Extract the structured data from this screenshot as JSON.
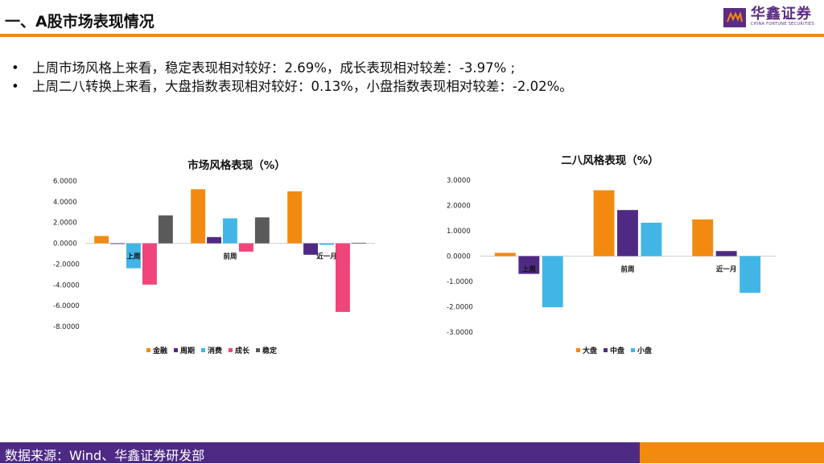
{
  "header": {
    "title": "一、A股市场表现情况",
    "brand_cn": "华鑫证券",
    "brand_en": "CHINA FORTUNE SECURITIES"
  },
  "bullets": [
    "上周市场风格上来看，稳定表现相对较好：2.69%，成长表现相对较差：-3.97% ;",
    "上周二八转换上来看，大盘指数表现相对较好：0.13%，小盘指数表现相对较差：-2.02%。"
  ],
  "colors": {
    "purple": "#4e2a84",
    "orange": "#f28a10"
  },
  "footer": {
    "source": "数据来源：Wind、华鑫证券研发部"
  },
  "chart_data": [
    {
      "type": "bar",
      "title": "市场风格表现（%）",
      "categories": [
        "上周",
        "前周",
        "近一月"
      ],
      "series": [
        {
          "name": "金融",
          "color": "#f28a10",
          "values": [
            0.7,
            5.2,
            5.0
          ]
        },
        {
          "name": "周期",
          "color": "#4e2a84",
          "values": [
            -0.05,
            0.6,
            -1.1
          ]
        },
        {
          "name": "消费",
          "color": "#41b6e6",
          "values": [
            -2.4,
            2.4,
            -0.15
          ]
        },
        {
          "name": "成长",
          "color": "#f0457a",
          "values": [
            -3.97,
            -0.8,
            -6.6
          ]
        },
        {
          "name": "稳定",
          "color": "#5a5a5a",
          "values": [
            2.69,
            2.5,
            0.05
          ]
        }
      ],
      "ylim": [
        -8,
        6
      ],
      "ticks": [
        6,
        4,
        2,
        0,
        -2,
        -4,
        -6,
        -8
      ],
      "tick_labels": [
        "6.0000",
        "4.0000",
        "2.0000",
        "0.0000",
        "-2.0000",
        "-4.0000",
        "-6.0000",
        "-8.0000"
      ],
      "legend_position": "bottom"
    },
    {
      "type": "bar",
      "title": "二八风格表现（%）",
      "categories": [
        "上周",
        "前周",
        "近一月"
      ],
      "series": [
        {
          "name": "大盘",
          "color": "#f28a10",
          "values": [
            0.13,
            2.6,
            1.45
          ]
        },
        {
          "name": "中盘",
          "color": "#4e2a84",
          "values": [
            -0.7,
            1.82,
            0.2
          ]
        },
        {
          "name": "小盘",
          "color": "#41b6e6",
          "values": [
            -2.02,
            1.32,
            -1.45
          ]
        }
      ],
      "ylim": [
        -3,
        3
      ],
      "ticks": [
        3,
        2,
        1,
        0,
        -1,
        -2,
        -3
      ],
      "tick_labels": [
        "3.0000",
        "2.0000",
        "1.0000",
        "0.0000",
        "-1.0000",
        "-2.0000",
        "-3.0000"
      ],
      "legend_position": "bottom"
    }
  ]
}
